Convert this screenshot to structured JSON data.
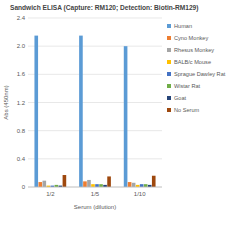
{
  "chart_data": {
    "type": "bar",
    "title": "Sandwich ELISA (Capture: RM120; Detection: Biotin-RM129)",
    "x_label": "Serum (dilution)",
    "y_label": "Abs (450nm)",
    "categories": [
      "1/2",
      "1/5",
      "1/10"
    ],
    "series": [
      {
        "name": "Human",
        "color": "#5b9bd5",
        "values": [
          2.15,
          2.15,
          2.0
        ]
      },
      {
        "name": "Cyno Monkey",
        "color": "#ed7d31",
        "values": [
          0.07,
          0.08,
          0.07
        ]
      },
      {
        "name": "Rhesus Monkey",
        "color": "#a5a5a5",
        "values": [
          0.09,
          0.1,
          0.06
        ]
      },
      {
        "name": "BALB/c Mouse",
        "color": "#ffc000",
        "values": [
          0.02,
          0.04,
          0.03
        ]
      },
      {
        "name": "Sprague Dawley Rat",
        "color": "#4472c4",
        "values": [
          0.02,
          0.04,
          0.04
        ]
      },
      {
        "name": "Wistar Rat",
        "color": "#70ad47",
        "values": [
          0.03,
          0.04,
          0.04
        ]
      },
      {
        "name": "Goat",
        "color": "#264478",
        "values": [
          0.02,
          0.03,
          0.03
        ]
      },
      {
        "name": "No Serum",
        "color": "#9e480e",
        "values": [
          0.17,
          0.15,
          0.16
        ]
      }
    ],
    "ylim": [
      0,
      2.4
    ],
    "yticks": [
      0,
      0.4,
      0.8,
      1.2,
      1.6,
      {
        "value": 2.0,
        "label": "2.0"
      },
      2.4
    ],
    "grid": true,
    "legend": "right"
  }
}
